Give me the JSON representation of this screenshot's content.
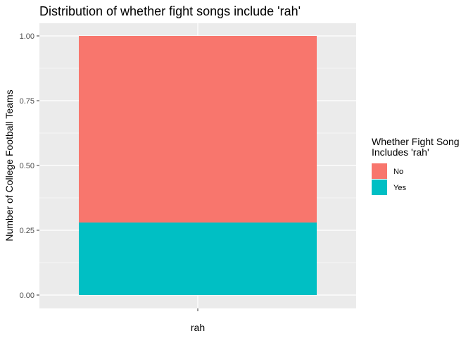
{
  "chart_data": {
    "type": "bar",
    "stacked": true,
    "title": "Distribution of whether fight songs include 'rah'",
    "xlabel": "",
    "ylabel": "Number of College Football Teams",
    "categories": [
      "rah"
    ],
    "ylim": [
      0,
      1
    ],
    "y_ticks": [
      "0.00",
      "0.25",
      "0.50",
      "0.75",
      "1.00"
    ],
    "grid": true,
    "legend": {
      "title_line1": "Whether Fight Song",
      "title_line2": "Includes 'rah'",
      "position": "right"
    },
    "series": [
      {
        "name": "No",
        "values": [
          0.72
        ],
        "color": "#F8766D"
      },
      {
        "name": "Yes",
        "values": [
          0.28
        ],
        "color": "#00BFC4"
      }
    ]
  }
}
